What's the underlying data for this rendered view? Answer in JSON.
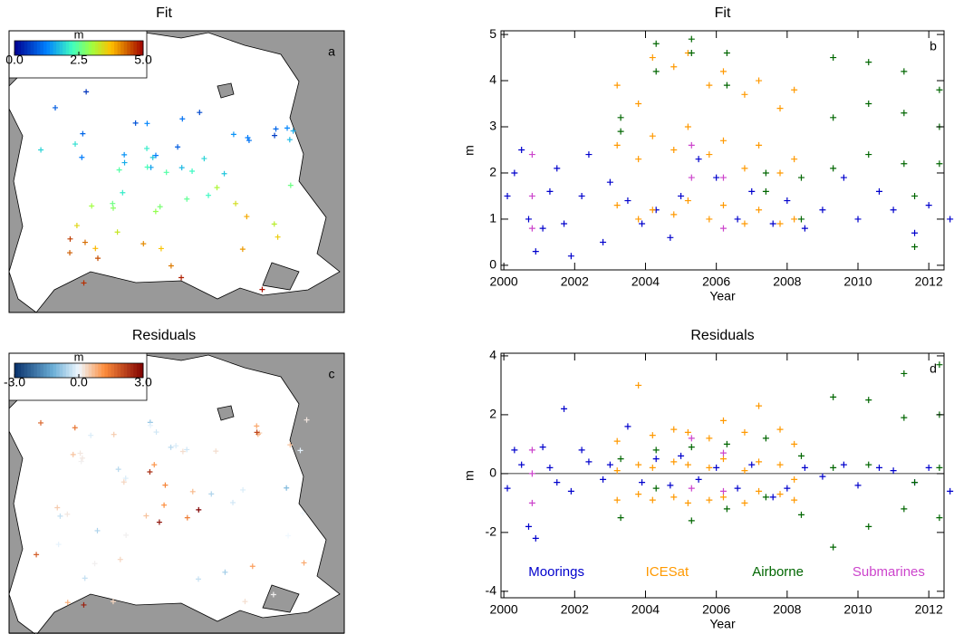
{
  "chart_data": [
    {
      "type": "map",
      "title": "Fit",
      "panel_label": "a",
      "colorbar": {
        "label": "m",
        "lim": [
          0,
          5
        ],
        "colormap": "rainbow",
        "ticks": [
          {
            "value": 0,
            "label": "0.0"
          },
          {
            "value": 2.5,
            "label": "2.5"
          },
          {
            "value": 5,
            "label": "5.0"
          }
        ]
      },
      "values": [
        0.6,
        0.9,
        1.1,
        0.8,
        1.2,
        0.7,
        1.0,
        1.4,
        0.9,
        1.3,
        1.1,
        0.5,
        1.6,
        1.2,
        1.8,
        1.0,
        1.5,
        1.9,
        2.1,
        1.4,
        1.7,
        2.2,
        1.3,
        2.0,
        1.6,
        2.4,
        1.9,
        1.2,
        2.3,
        2.6,
        1.8,
        2.8,
        2.1,
        3.0,
        2.5,
        1.7,
        3.2,
        2.7,
        3.4,
        2.2,
        3.6,
        2.9,
        3.8,
        3.1,
        4.0,
        2.6,
        4.2,
        3.5,
        4.4,
        3.3,
        4.6,
        3.9,
        4.8,
        4.1,
        4.9,
        3.7,
        4.5,
        2.4,
        4.3,
        4.7
      ]
    },
    {
      "type": "scatter",
      "title": "Fit",
      "panel_label": "b",
      "xlabel": "Year",
      "ylabel": "m",
      "xlim": [
        1999.92,
        2012.43
      ],
      "xticks": [
        2000,
        2002,
        2004,
        2006,
        2008,
        2010,
        2012
      ],
      "ylim": [
        -0.1,
        5.08
      ],
      "yticks": [
        0,
        1,
        2,
        3,
        4,
        5
      ],
      "series": [
        {
          "color": "#0000cc",
          "x": [
            2000.1,
            2000.3,
            2000.5,
            2000.7,
            2000.9,
            2001.1,
            2001.3,
            2001.5,
            2001.7,
            2001.9,
            2002.2,
            2002.4,
            2002.8,
            2003.0,
            2003.5,
            2003.9,
            2004.3,
            2004.7,
            2005.0,
            2005.5,
            2006.0,
            2006.6,
            2007.0,
            2007.6,
            2008.0,
            2008.5,
            2009.0,
            2009.6,
            2010.0,
            2010.6,
            2011.0,
            2011.6,
            2012.0,
            2012.6
          ],
          "values": [
            1.5,
            2.0,
            2.5,
            1.0,
            0.3,
            0.8,
            1.6,
            2.1,
            0.9,
            0.2,
            1.5,
            2.4,
            0.5,
            1.8,
            1.4,
            0.9,
            1.2,
            0.6,
            1.5,
            2.3,
            1.9,
            1.0,
            1.6,
            0.9,
            1.4,
            0.8,
            1.2,
            1.9,
            1.0,
            1.6,
            1.2,
            0.7,
            1.3,
            1.0
          ]
        },
        {
          "color": "#ff9900",
          "x": [
            2003.2,
            2003.2,
            2003.2,
            2003.8,
            2003.8,
            2003.8,
            2004.2,
            2004.2,
            2004.2,
            2004.8,
            2004.8,
            2004.8,
            2005.2,
            2005.2,
            2005.2,
            2005.8,
            2005.8,
            2005.8,
            2006.2,
            2006.2,
            2006.2,
            2006.8,
            2006.8,
            2006.8,
            2007.2,
            2007.2,
            2007.2,
            2007.8,
            2007.8,
            2007.8,
            2008.2,
            2008.2,
            2008.2
          ],
          "values": [
            1.3,
            2.6,
            3.9,
            1.0,
            2.3,
            3.5,
            1.2,
            2.8,
            4.5,
            1.1,
            2.5,
            4.3,
            1.4,
            3.0,
            4.6,
            1.0,
            2.4,
            3.9,
            1.3,
            2.7,
            4.2,
            0.9,
            2.1,
            3.7,
            1.2,
            2.6,
            4.0,
            0.9,
            2.0,
            3.4,
            1.0,
            2.3,
            3.8
          ]
        },
        {
          "color": "#006600",
          "x": [
            2003.3,
            2003.3,
            2004.3,
            2004.3,
            2005.3,
            2005.3,
            2006.3,
            2006.3,
            2007.4,
            2007.4,
            2008.4,
            2008.4,
            2009.3,
            2009.3,
            2009.3,
            2010.3,
            2010.3,
            2010.3,
            2011.3,
            2011.3,
            2011.3,
            2011.6,
            2011.6,
            2012.3,
            2012.3,
            2012.3
          ],
          "values": [
            2.9,
            3.2,
            4.2,
            4.8,
            4.6,
            4.9,
            3.9,
            4.6,
            1.6,
            2.0,
            1.0,
            1.9,
            2.1,
            3.2,
            4.5,
            2.4,
            3.5,
            4.4,
            2.2,
            3.3,
            4.2,
            0.4,
            1.5,
            2.2,
            3.0,
            3.8
          ]
        },
        {
          "color": "#cc44cc",
          "x": [
            2000.8,
            2000.8,
            2000.8,
            2005.3,
            2005.3,
            2006.2,
            2006.2
          ],
          "values": [
            0.8,
            1.5,
            2.4,
            1.9,
            2.6,
            0.8,
            1.9
          ]
        }
      ]
    },
    {
      "type": "map",
      "title": "Residuals",
      "panel_label": "c",
      "colorbar": {
        "label": "m",
        "lim": [
          -3,
          3
        ],
        "colormap": "diverging",
        "ticks": [
          {
            "value": -3,
            "label": "-3.0"
          },
          {
            "value": 0,
            "label": "0.0"
          },
          {
            "value": 3,
            "label": "3.0"
          }
        ]
      },
      "values": [
        0.1,
        -0.2,
        0.3,
        -0.1,
        0.5,
        -0.4,
        0.2,
        0.8,
        -0.3,
        0.0,
        1.1,
        -0.6,
        0.4,
        -0.2,
        1.4,
        0.3,
        -0.8,
        0.6,
        0.1,
        -0.5,
        1.8,
        0.2,
        -0.1,
        0.9,
        -0.3,
        0.5,
        2.4,
        -0.2,
        0.7,
        0.0,
        -1.0,
        1.2,
        0.3,
        -0.4,
        0.6,
        2.8,
        0.1,
        -0.7,
        1.0,
        0.4,
        -0.2,
        1.5,
        0.2,
        -0.5,
        0.8,
        2.1,
        -0.3,
        0.6,
        0.1,
        1.3,
        -0.6,
        0.4,
        2.6,
        0.2,
        -0.1,
        0.9,
        1.7,
        -0.4,
        0.5,
        3.0
      ]
    },
    {
      "type": "scatter",
      "title": "Residuals",
      "panel_label": "d",
      "xlabel": "Year",
      "ylabel": "m",
      "xlim": [
        1999.92,
        2012.43
      ],
      "xticks": [
        2000,
        2002,
        2004,
        2006,
        2008,
        2010,
        2012
      ],
      "ylim": [
        -4.22,
        4.09
      ],
      "yticks": [
        -4,
        -2,
        0,
        2,
        4
      ],
      "zero_line": true,
      "legend": "bottom",
      "series": [
        {
          "name": "Moorings",
          "color": "#0000cc",
          "x": [
            2000.1,
            2000.3,
            2000.5,
            2000.7,
            2000.9,
            2001.1,
            2001.3,
            2001.5,
            2001.7,
            2001.9,
            2002.2,
            2002.4,
            2002.8,
            2003.0,
            2003.5,
            2003.9,
            2004.3,
            2004.7,
            2005.0,
            2005.5,
            2006.0,
            2006.6,
            2007.0,
            2007.6,
            2008.0,
            2008.5,
            2009.0,
            2009.6,
            2010.0,
            2010.6,
            2011.0,
            2011.6,
            2012.0,
            2012.6
          ],
          "values": [
            -0.5,
            0.8,
            0.3,
            -1.8,
            -2.2,
            0.9,
            0.2,
            -0.3,
            2.2,
            -0.6,
            0.8,
            0.4,
            -0.2,
            0.3,
            1.6,
            -0.3,
            0.5,
            -0.4,
            0.6,
            -0.2,
            0.2,
            -0.5,
            0.3,
            -0.8,
            -0.5,
            0.2,
            -0.1,
            0.3,
            -0.4,
            0.2,
            0.1,
            -0.3,
            0.2,
            -0.6
          ]
        },
        {
          "name": "ICESat",
          "color": "#ff9900",
          "x": [
            2003.2,
            2003.2,
            2003.2,
            2003.8,
            2003.8,
            2003.8,
            2004.2,
            2004.2,
            2004.2,
            2004.8,
            2004.8,
            2004.8,
            2005.2,
            2005.2,
            2005.2,
            2005.8,
            2005.8,
            2005.8,
            2006.2,
            2006.2,
            2006.2,
            2006.8,
            2006.8,
            2006.8,
            2007.2,
            2007.2,
            2007.2,
            2007.8,
            2007.8,
            2007.8,
            2008.2,
            2008.2,
            2008.2
          ],
          "values": [
            -0.9,
            0.1,
            1.1,
            -0.7,
            0.3,
            3.0,
            -0.9,
            0.2,
            1.3,
            -0.8,
            0.4,
            1.5,
            -1.0,
            0.3,
            1.4,
            -0.9,
            0.2,
            1.2,
            -0.8,
            0.5,
            1.8,
            -1.0,
            0.1,
            1.4,
            -0.6,
            0.4,
            2.3,
            -0.7,
            0.3,
            1.5,
            -0.9,
            -0.2,
            1.0
          ]
        },
        {
          "name": "Airborne",
          "color": "#006600",
          "x": [
            2003.3,
            2003.3,
            2004.3,
            2004.3,
            2005.3,
            2005.3,
            2006.3,
            2006.3,
            2007.4,
            2007.4,
            2008.4,
            2008.4,
            2009.3,
            2009.3,
            2009.3,
            2010.3,
            2010.3,
            2010.3,
            2011.3,
            2011.3,
            2011.3,
            2011.6,
            2012.3,
            2012.3,
            2012.3,
            2012.3
          ],
          "values": [
            -1.5,
            0.5,
            -0.5,
            0.8,
            -1.6,
            0.9,
            -1.2,
            1.0,
            -0.8,
            1.2,
            -1.4,
            0.6,
            -2.5,
            0.2,
            2.6,
            -1.8,
            0.3,
            2.5,
            -1.2,
            3.4,
            1.9,
            -0.3,
            -1.5,
            0.2,
            2.0,
            3.7
          ]
        },
        {
          "name": "Submarines",
          "color": "#cc44cc",
          "x": [
            2000.8,
            2000.8,
            2000.8,
            2005.3,
            2005.3,
            2006.2,
            2006.2
          ],
          "values": [
            -1.0,
            0,
            0.8,
            -0.5,
            1.2,
            -0.6,
            0.7
          ]
        }
      ]
    }
  ]
}
